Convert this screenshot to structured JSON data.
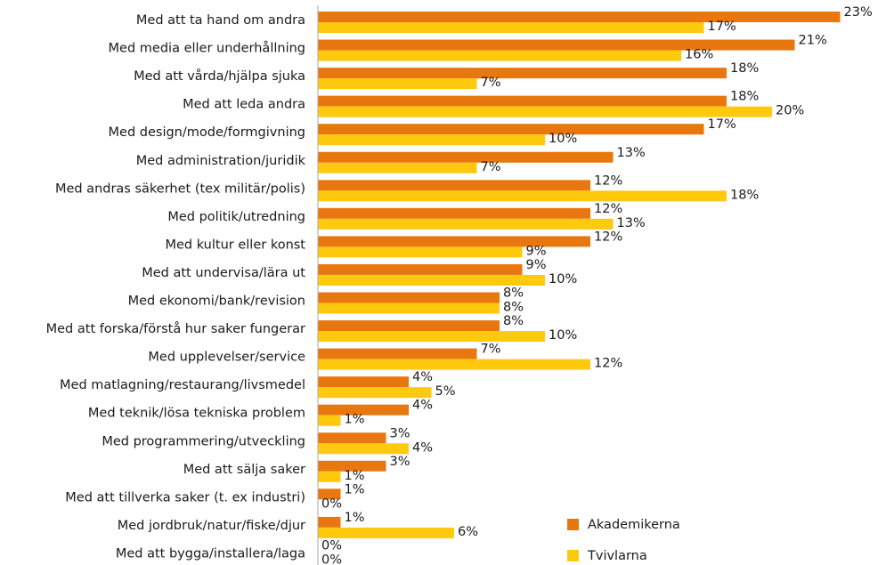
{
  "chart_data": {
    "type": "hbar",
    "categories": [
      "Med att ta hand om andra",
      "Med media eller underhållning",
      "Med att vårda/hjälpa sjuka",
      "Med att leda andra",
      "Med design/mode/formgivning",
      "Med administration/juridik",
      "Med andras säkerhet (tex militär/polis)",
      "Med politik/utredning",
      "Med kultur eller konst",
      "Med att undervisa/lära ut",
      "Med ekonomi/bank/revision",
      "Med att forska/förstå hur saker fungerar",
      "Med upplevelser/service",
      "Med matlagning/restaurang/livsmedel",
      "Med teknik/lösa tekniska problem",
      "Med programmering/utveckling",
      "Med att sälja saker",
      "Med att tillverka saker (t. ex industri)",
      "Med jordbruk/natur/fiske/djur",
      "Med att bygga/installera/laga"
    ],
    "series": [
      {
        "name": "Akademikerna",
        "color": "#e8770f",
        "values": [
          23,
          21,
          18,
          18,
          17,
          13,
          12,
          12,
          12,
          9,
          8,
          8,
          7,
          4,
          4,
          3,
          3,
          1,
          1,
          0
        ],
        "value_labels": [
          "23%",
          "21%",
          "18%",
          "18%",
          "17%",
          "13%",
          "12%",
          "12%",
          "12%",
          "9%",
          "8%",
          "8%",
          "7%",
          "4%",
          "4%",
          "3%",
          "3%",
          "1%",
          "1%",
          "0%"
        ]
      },
      {
        "name": "Tvivlarna",
        "color": "#ffc90e",
        "values": [
          17,
          16,
          7,
          20,
          10,
          7,
          18,
          13,
          9,
          10,
          8,
          10,
          12,
          5,
          1,
          4,
          1,
          0,
          6,
          0
        ],
        "value_labels": [
          "17%",
          "16%",
          "7%",
          "20%",
          "10%",
          "7%",
          "18%",
          "13%",
          "9%",
          "10%",
          "8%",
          "10%",
          "12%",
          "5%",
          "1%",
          "4%",
          "1%",
          "0%",
          "6%",
          "0%"
        ]
      }
    ],
    "legend": "lower right"
  }
}
